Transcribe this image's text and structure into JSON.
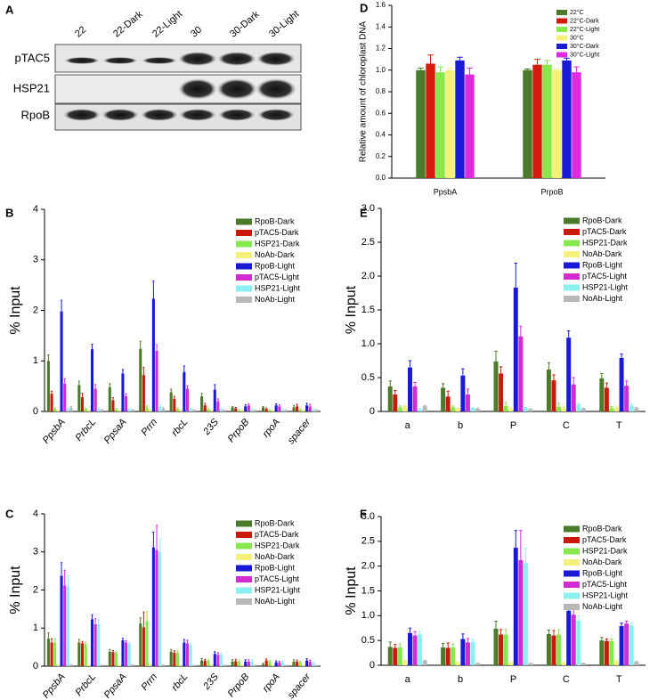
{
  "blot": {
    "panel": "A",
    "lanes": [
      "22",
      "22-Dark",
      "22-Light",
      "30",
      "30-Dark",
      "30-Light"
    ],
    "rows": [
      "pTAC5",
      "HSP21",
      "RpoB"
    ]
  },
  "chart_data": [
    {
      "panel": "D",
      "type": "bar",
      "ylabel": "Relative amount of chloroplast DNA",
      "categories": [
        "PpsbA",
        "PrpoB"
      ],
      "ylim": [
        0,
        1.6
      ],
      "yticks": [
        {
          "value": 0,
          "label": "0.0"
        },
        0.2,
        0.4,
        0.6,
        0.8,
        {
          "value": 1,
          "label": "1.0"
        },
        1.2,
        1.4,
        1.6
      ],
      "series": [
        {
          "name": "22°C",
          "color": "#4a7a2a",
          "values": [
            1.0,
            1.0
          ],
          "errors": [
            0.02,
            0.01
          ]
        },
        {
          "name": "22°C-Dark",
          "color": "#d41a0a",
          "values": [
            1.06,
            1.05
          ],
          "errors": [
            0.08,
            0.05
          ]
        },
        {
          "name": "22°C-Light",
          "color": "#86e84a",
          "values": [
            0.98,
            1.05
          ],
          "errors": [
            0.05,
            0.04
          ]
        },
        {
          "name": "30°C",
          "color": "#f5f07a",
          "values": [
            1.0,
            1.0
          ],
          "errors": [
            0.02,
            0.01
          ]
        },
        {
          "name": "30°C-Dark",
          "color": "#1a1ad6",
          "values": [
            1.09,
            1.09
          ],
          "errors": [
            0.03,
            0.02
          ]
        },
        {
          "name": "30°C-Light",
          "color": "#e02ae0",
          "values": [
            0.96,
            0.98
          ],
          "errors": [
            0.06,
            0.05
          ]
        }
      ]
    },
    {
      "panel": "B",
      "type": "bar",
      "ylabel": "% Input",
      "categories": [
        "PpsbA",
        "PrbcL",
        "PpsaA",
        "Prrn",
        "rbcL",
        "23S",
        "PrpoB",
        "rpoA",
        "spacer"
      ],
      "ylim": [
        0,
        4
      ],
      "yticks": [
        0,
        1,
        2,
        3,
        4
      ],
      "series": [
        {
          "name": "RpoB-Dark",
          "color": "#4a7a2a",
          "values": [
            1.0,
            0.52,
            0.48,
            1.24,
            0.38,
            0.3,
            0.08,
            0.08,
            0.08
          ],
          "errors": [
            0.12,
            0.08,
            0.07,
            0.15,
            0.06,
            0.06,
            0.02,
            0.02,
            0.04
          ]
        },
        {
          "name": "pTAC5-Dark",
          "color": "#cc1a0a",
          "values": [
            0.35,
            0.28,
            0.22,
            0.72,
            0.25,
            0.12,
            0.06,
            0.05,
            0.1
          ],
          "errors": [
            0.05,
            0.08,
            0.05,
            0.15,
            0.05,
            0.04,
            0.02,
            0.02,
            0.04
          ]
        },
        {
          "name": "HSP21-Dark",
          "color": "#86e84a",
          "values": [
            0.05,
            0.05,
            0.04,
            0.08,
            0.05,
            0.04,
            0.02,
            0.02,
            0.03
          ],
          "errors": [
            0.02,
            0.02,
            0.02,
            0.03,
            0.02,
            0.01,
            0.01,
            0.01,
            0.02
          ]
        },
        {
          "name": "NoAb-Dark",
          "color": "#f5f07a",
          "values": [
            0.02,
            0.02,
            0.02,
            0.03,
            0.02,
            0.02,
            0.02,
            0.02,
            0.02
          ],
          "errors": [
            0.01,
            0.01,
            0.01,
            0.01,
            0.01,
            0.01,
            0.01,
            0.01,
            0.01
          ]
        },
        {
          "name": "RpoB-Light",
          "color": "#1a1ad6",
          "values": [
            1.98,
            1.23,
            0.75,
            2.23,
            0.78,
            0.43,
            0.1,
            0.12,
            0.12
          ],
          "errors": [
            0.22,
            0.1,
            0.08,
            0.35,
            0.12,
            0.1,
            0.03,
            0.03,
            0.04
          ]
        },
        {
          "name": "pTAC5-Light",
          "color": "#d42ad4",
          "values": [
            0.55,
            0.45,
            0.3,
            1.2,
            0.45,
            0.2,
            0.12,
            0.1,
            0.1
          ],
          "errors": [
            0.1,
            0.08,
            0.05,
            0.12,
            0.06,
            0.05,
            0.03,
            0.03,
            0.04
          ]
        },
        {
          "name": "HSP21-Light",
          "color": "#8af0f0",
          "values": [
            0.05,
            0.05,
            0.04,
            0.1,
            0.05,
            0.04,
            0.03,
            0.03,
            0.04
          ],
          "errors": [
            0.02,
            0.02,
            0.01,
            0.03,
            0.02,
            0.01,
            0.01,
            0.01,
            0.02
          ]
        },
        {
          "name": "NoAb-Light",
          "color": "#b8b8b8",
          "values": [
            0.08,
            0.03,
            0.03,
            0.06,
            0.03,
            0.02,
            0.02,
            0.02,
            0.03
          ],
          "errors": [
            0.02,
            0.01,
            0.01,
            0.02,
            0.01,
            0.01,
            0.01,
            0.01,
            0.01
          ]
        }
      ]
    },
    {
      "panel": "C",
      "type": "bar",
      "ylabel": "% Input",
      "categories": [
        "PpsbA",
        "PrbcL",
        "PpsaA",
        "Prrn",
        "rbcL",
        "23S",
        "PrpoB",
        "rpoA",
        "spacer"
      ],
      "ylim": [
        0,
        4
      ],
      "yticks": [
        0,
        1,
        2,
        3,
        4
      ],
      "series": [
        {
          "name": "RpoB-Dark",
          "color": "#4a7a2a",
          "values": [
            0.72,
            0.62,
            0.38,
            1.12,
            0.38,
            0.15,
            0.12,
            0.05,
            0.12
          ],
          "errors": [
            0.15,
            0.08,
            0.06,
            0.15,
            0.06,
            0.05,
            0.05,
            0.03,
            0.05
          ]
        },
        {
          "name": "pTAC5-Dark",
          "color": "#cc1a0a",
          "values": [
            0.62,
            0.6,
            0.37,
            1.02,
            0.35,
            0.14,
            0.13,
            0.15,
            0.12
          ],
          "errors": [
            0.1,
            0.05,
            0.04,
            0.4,
            0.05,
            0.04,
            0.05,
            0.04,
            0.04
          ]
        },
        {
          "name": "HSP21-Dark",
          "color": "#86e84a",
          "values": [
            0.62,
            0.58,
            0.35,
            1.18,
            0.35,
            0.14,
            0.12,
            0.12,
            0.1
          ],
          "errors": [
            0.1,
            0.05,
            0.04,
            0.25,
            0.05,
            0.04,
            0.04,
            0.03,
            0.03
          ]
        },
        {
          "name": "NoAb-Dark",
          "color": "#f5f07a",
          "values": [
            0.03,
            0.02,
            0.02,
            0.03,
            0.02,
            0.02,
            0.02,
            0.02,
            0.02
          ],
          "errors": [
            0.01,
            0.01,
            0.01,
            0.01,
            0.01,
            0.01,
            0.01,
            0.01,
            0.01
          ]
        },
        {
          "name": "RpoB-Light",
          "color": "#1a1ad6",
          "values": [
            2.37,
            1.23,
            0.68,
            3.12,
            0.62,
            0.32,
            0.12,
            0.1,
            0.15
          ],
          "errors": [
            0.35,
            0.12,
            0.05,
            0.4,
            0.08,
            0.06,
            0.05,
            0.04,
            0.05
          ]
        },
        {
          "name": "pTAC5-Light",
          "color": "#d42ad4",
          "values": [
            2.12,
            1.1,
            0.62,
            3.05,
            0.6,
            0.3,
            0.12,
            0.1,
            0.12
          ],
          "errors": [
            0.4,
            0.15,
            0.05,
            0.65,
            0.08,
            0.05,
            0.05,
            0.03,
            0.04
          ]
        },
        {
          "name": "HSP21-Light",
          "color": "#8af0f0",
          "values": [
            2.08,
            1.1,
            0.58,
            3.0,
            0.55,
            0.3,
            0.12,
            0.1,
            0.08
          ],
          "errors": [
            0.3,
            0.12,
            0.04,
            0.35,
            0.06,
            0.04,
            0.04,
            0.03,
            0.03
          ]
        },
        {
          "name": "NoAb-Light",
          "color": "#b8b8b8",
          "values": [
            0.03,
            0.03,
            0.03,
            0.03,
            0.02,
            0.02,
            0.02,
            0.02,
            0.02
          ],
          "errors": [
            0.01,
            0.01,
            0.01,
            0.01,
            0.01,
            0.01,
            0.01,
            0.01,
            0.01
          ]
        }
      ]
    },
    {
      "panel": "E",
      "type": "bar",
      "ylabel": "% Input",
      "categories": [
        "a",
        "b",
        "P",
        "C",
        "T"
      ],
      "ylim": [
        0,
        3
      ],
      "yticks": [
        0,
        0.5,
        {
          "value": 1,
          "label": "1.0"
        },
        1.5,
        {
          "value": 2,
          "label": "2.0"
        },
        2.5,
        {
          "value": 3,
          "label": "3.0"
        }
      ],
      "series": [
        {
          "name": "RpoB-Dark",
          "color": "#4a7a2a",
          "values": [
            0.37,
            0.35,
            0.74,
            0.62,
            0.49
          ],
          "errors": [
            0.08,
            0.06,
            0.15,
            0.1,
            0.07
          ]
        },
        {
          "name": "pTAC5-Dark",
          "color": "#cc1a0a",
          "values": [
            0.25,
            0.22,
            0.56,
            0.46,
            0.35
          ],
          "errors": [
            0.06,
            0.08,
            0.1,
            0.08,
            0.07
          ]
        },
        {
          "name": "HSP21-Dark",
          "color": "#86e84a",
          "values": [
            0.06,
            0.06,
            0.08,
            0.07,
            0.05
          ],
          "errors": [
            0.02,
            0.02,
            0.05,
            0.05,
            0.02
          ]
        },
        {
          "name": "NoAb-Dark",
          "color": "#f5f07a",
          "values": [
            0.08,
            0.04,
            0.04,
            0.06,
            0.06
          ],
          "errors": [
            0.02,
            0.01,
            0.02,
            0.02,
            0.02
          ]
        },
        {
          "name": "RpoB-Light",
          "color": "#1a1ad6",
          "values": [
            0.65,
            0.53,
            1.83,
            1.09,
            0.79
          ],
          "errors": [
            0.1,
            0.1,
            0.36,
            0.1,
            0.06
          ]
        },
        {
          "name": "pTAC5-Light",
          "color": "#d42ad4",
          "values": [
            0.37,
            0.25,
            1.11,
            0.4,
            0.38
          ],
          "errors": [
            0.06,
            0.08,
            0.15,
            0.1,
            0.07
          ]
        },
        {
          "name": "HSP21-Light",
          "color": "#8af0f0",
          "values": [
            0.03,
            0.05,
            0.05,
            0.1,
            0.09
          ],
          "errors": [
            0.01,
            0.01,
            0.01,
            0.02,
            0.02
          ]
        },
        {
          "name": "NoAb-Light",
          "color": "#b8b8b8",
          "values": [
            0.08,
            0.04,
            0.03,
            0.04,
            0.05
          ],
          "errors": [
            0.01,
            0.01,
            0.01,
            0.01,
            0.01
          ]
        }
      ]
    },
    {
      "panel": "F",
      "type": "bar",
      "ylabel": "% Input",
      "categories": [
        "a",
        "b",
        "P",
        "C",
        "T"
      ],
      "ylim": [
        0,
        3
      ],
      "yticks": [
        0,
        0.5,
        {
          "value": 1,
          "label": "1.0"
        },
        1.5,
        {
          "value": 2,
          "label": "2.0"
        },
        2.5,
        {
          "value": 3,
          "label": "3.0"
        }
      ],
      "series": [
        {
          "name": "RpoB-Dark",
          "color": "#4a7a2a",
          "values": [
            0.37,
            0.36,
            0.74,
            0.63,
            0.5
          ],
          "errors": [
            0.1,
            0.08,
            0.15,
            0.08,
            0.06
          ]
        },
        {
          "name": "pTAC5-Dark",
          "color": "#cc1a0a",
          "values": [
            0.35,
            0.35,
            0.62,
            0.6,
            0.49
          ],
          "errors": [
            0.07,
            0.1,
            0.1,
            0.1,
            0.04
          ]
        },
        {
          "name": "HSP21-Dark",
          "color": "#86e84a",
          "values": [
            0.36,
            0.36,
            0.62,
            0.62,
            0.49
          ],
          "errors": [
            0.07,
            0.07,
            0.1,
            0.1,
            0.04
          ]
        },
        {
          "name": "NoAb-Dark",
          "color": "#f5f07a",
          "values": [
            0.09,
            0.05,
            0.05,
            0.05,
            0.08
          ],
          "errors": [
            0.02,
            0.01,
            0.02,
            0.01,
            0.02
          ]
        },
        {
          "name": "RpoB-Light",
          "color": "#1a1ad6",
          "values": [
            0.65,
            0.53,
            2.37,
            1.1,
            0.79
          ],
          "errors": [
            0.1,
            0.1,
            0.35,
            0.1,
            0.06
          ]
        },
        {
          "name": "pTAC5-Light",
          "color": "#d42ad4",
          "values": [
            0.6,
            0.46,
            2.12,
            1.02,
            0.84
          ],
          "errors": [
            0.08,
            0.08,
            0.6,
            0.1,
            0.05
          ]
        },
        {
          "name": "HSP21-Light",
          "color": "#8af0f0",
          "values": [
            0.62,
            0.47,
            2.06,
            0.9,
            0.8
          ],
          "errors": [
            0.06,
            0.05,
            0.3,
            0.1,
            0.04
          ]
        },
        {
          "name": "NoAb-Light",
          "color": "#b8b8b8",
          "values": [
            0.09,
            0.04,
            0.04,
            0.04,
            0.07
          ],
          "errors": [
            0.01,
            0.01,
            0.01,
            0.01,
            0.01
          ]
        }
      ]
    }
  ]
}
